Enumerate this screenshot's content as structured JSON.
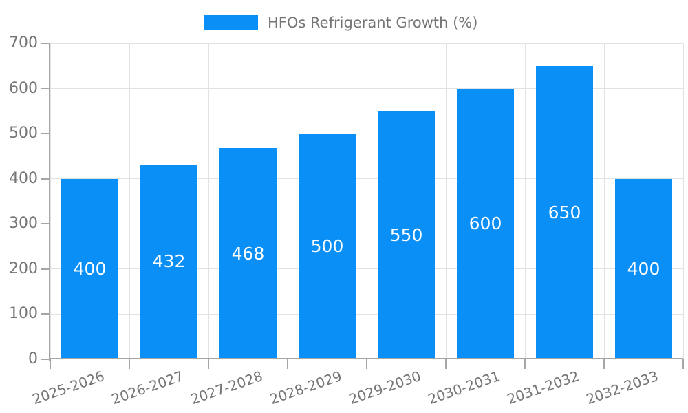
{
  "legend": {
    "label": "HFOs Refrigerant Growth (%)"
  },
  "colors": {
    "bar": "#0a8ff7",
    "grid": "#e2e2e2",
    "axis": "#a6a6a6",
    "tick_text": "#757575",
    "value_text": "#ffffff",
    "background": "#ffffff"
  },
  "chart_data": {
    "type": "bar",
    "title": "",
    "legend_position": "top",
    "legend_entries": [
      "HFOs Refrigerant Growth (%)"
    ],
    "categories": [
      "2025-2026",
      "2026-2027",
      "2027-2028",
      "2028-2029",
      "2029-2030",
      "2030-2031",
      "2031-2032",
      "2032-2033"
    ],
    "values": [
      400,
      432,
      468,
      500,
      550,
      600,
      650,
      400
    ],
    "value_labels_shown": true,
    "xlabel": "",
    "ylabel": "",
    "ylim": [
      0,
      700
    ],
    "yticks": [
      0,
      100,
      200,
      300,
      400,
      500,
      600,
      700
    ],
    "grid": true,
    "x_label_rotation_deg": -19
  }
}
